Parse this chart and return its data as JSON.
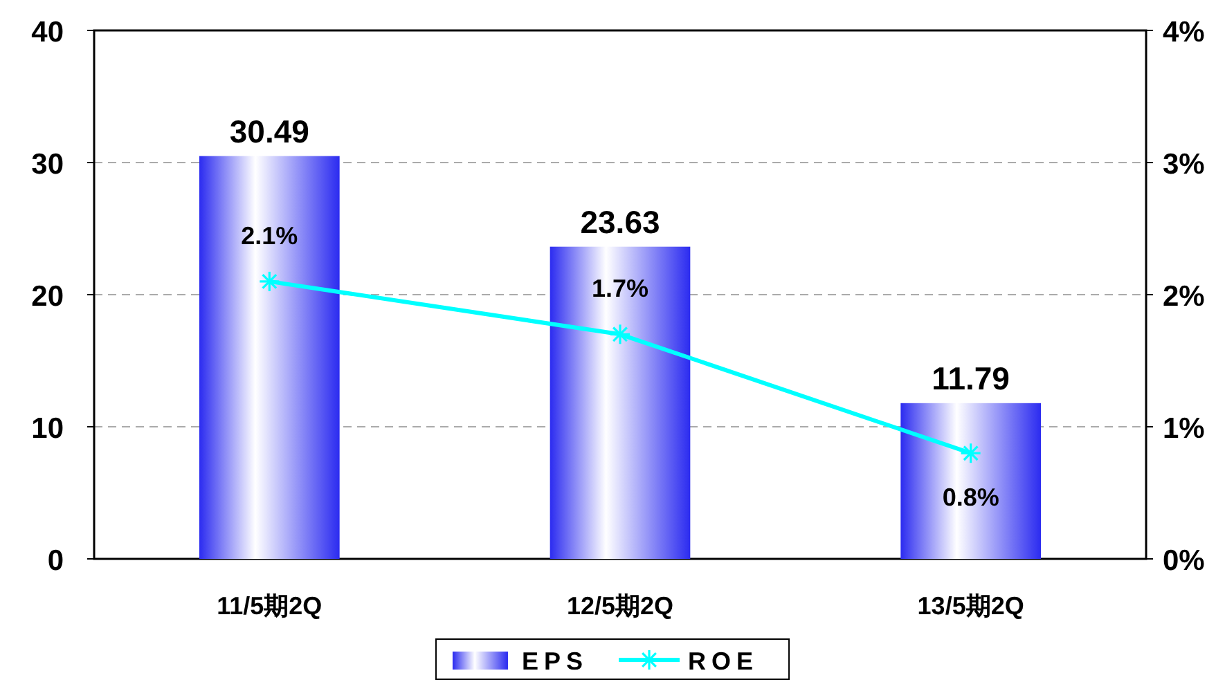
{
  "chart_data": {
    "type": "bar",
    "categories": [
      "11/5期2Q",
      "12/5期2Q",
      "13/5期2Q"
    ],
    "series": [
      {
        "name": "EPS",
        "color": "#2b2bf0",
        "values": [
          30.49,
          23.63,
          11.79
        ]
      },
      {
        "name": "ROE",
        "type": "line",
        "axis": "y2",
        "color": "#00ffff",
        "marker": "cross",
        "values": [
          2.1,
          1.7,
          0.8
        ],
        "value_labels": [
          "2.1%",
          "1.7%",
          "0.8%"
        ]
      }
    ],
    "data_labels": true,
    "ylim": [
      0,
      40
    ],
    "yticks": [
      0,
      10,
      20,
      30,
      40
    ],
    "y2lim": [
      0,
      4
    ],
    "y2ticks": [
      {
        "value": 0,
        "label": "0%"
      },
      {
        "value": 1,
        "label": "1%"
      },
      {
        "value": 2,
        "label": "2%"
      },
      {
        "value": 3,
        "label": "3%"
      },
      {
        "value": 4,
        "label": "4%"
      }
    ],
    "grid": "y",
    "legend": "bottom"
  }
}
